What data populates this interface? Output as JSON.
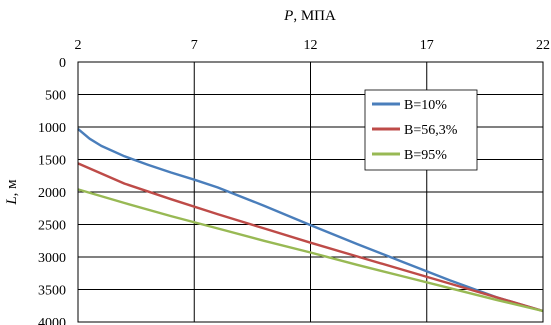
{
  "chart_data": {
    "type": "line",
    "xlabel_var": "P",
    "xlabel_unit": ", МПА",
    "ylabel_var": "L",
    "ylabel_unit": ", м",
    "x_axis_position": "top",
    "y_axis_inverted": true,
    "xlim": [
      2,
      22
    ],
    "ylim": [
      0,
      4000
    ],
    "x_ticks": [
      "2",
      "7",
      "12",
      "17",
      "22"
    ],
    "y_ticks": [
      "0",
      "500",
      "1000",
      "1500",
      "2000",
      "2500",
      "3000",
      "3500",
      "4000"
    ],
    "grid": true,
    "legend_position": "top-right",
    "series": [
      {
        "name": "В=10%",
        "color": "#4a7ebb",
        "points": [
          [
            2,
            1030
          ],
          [
            2.5,
            1180
          ],
          [
            3,
            1290
          ],
          [
            4,
            1450
          ],
          [
            5,
            1580
          ],
          [
            6,
            1700
          ],
          [
            7,
            1810
          ],
          [
            8,
            1930
          ],
          [
            10,
            2210
          ],
          [
            12,
            2510
          ],
          [
            14,
            2800
          ],
          [
            16,
            3080
          ],
          [
            18,
            3360
          ],
          [
            20,
            3620
          ],
          [
            22,
            3830
          ]
        ]
      },
      {
        "name": "В=56,3%",
        "color": "#be4b48",
        "points": [
          [
            2,
            1560
          ],
          [
            4,
            1870
          ],
          [
            6,
            2110
          ],
          [
            8,
            2340
          ],
          [
            10,
            2560
          ],
          [
            12,
            2780
          ],
          [
            14,
            2990
          ],
          [
            16,
            3200
          ],
          [
            18,
            3410
          ],
          [
            20,
            3620
          ],
          [
            22,
            3830
          ]
        ]
      },
      {
        "name": "В=95%",
        "color": "#98b954",
        "points": [
          [
            2,
            1960
          ],
          [
            4,
            2170
          ],
          [
            6,
            2370
          ],
          [
            8,
            2560
          ],
          [
            10,
            2750
          ],
          [
            12,
            2930
          ],
          [
            14,
            3120
          ],
          [
            16,
            3300
          ],
          [
            18,
            3480
          ],
          [
            20,
            3660
          ],
          [
            22,
            3830
          ]
        ]
      }
    ]
  }
}
